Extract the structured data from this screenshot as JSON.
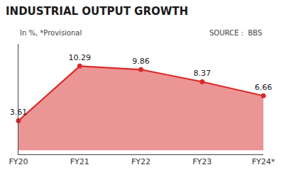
{
  "chart_data": {
    "type": "line",
    "title": "INDUSTRIAL OUTPUT GROWTH",
    "subtitle": "In %, *Provisional",
    "annotations": [
      "SOURCE :  BBS"
    ],
    "categories": [
      "FY20",
      "FY21",
      "FY22",
      "FY23",
      "FY24*"
    ],
    "values": [
      3.61,
      10.29,
      9.86,
      8.37,
      6.66
    ],
    "color": "#d92b2b",
    "marker": "circle",
    "ylim": [
      -0.5,
      13
    ],
    "yticks": [],
    "grid": false,
    "data_labels": true,
    "tick_labels": "x"
  }
}
